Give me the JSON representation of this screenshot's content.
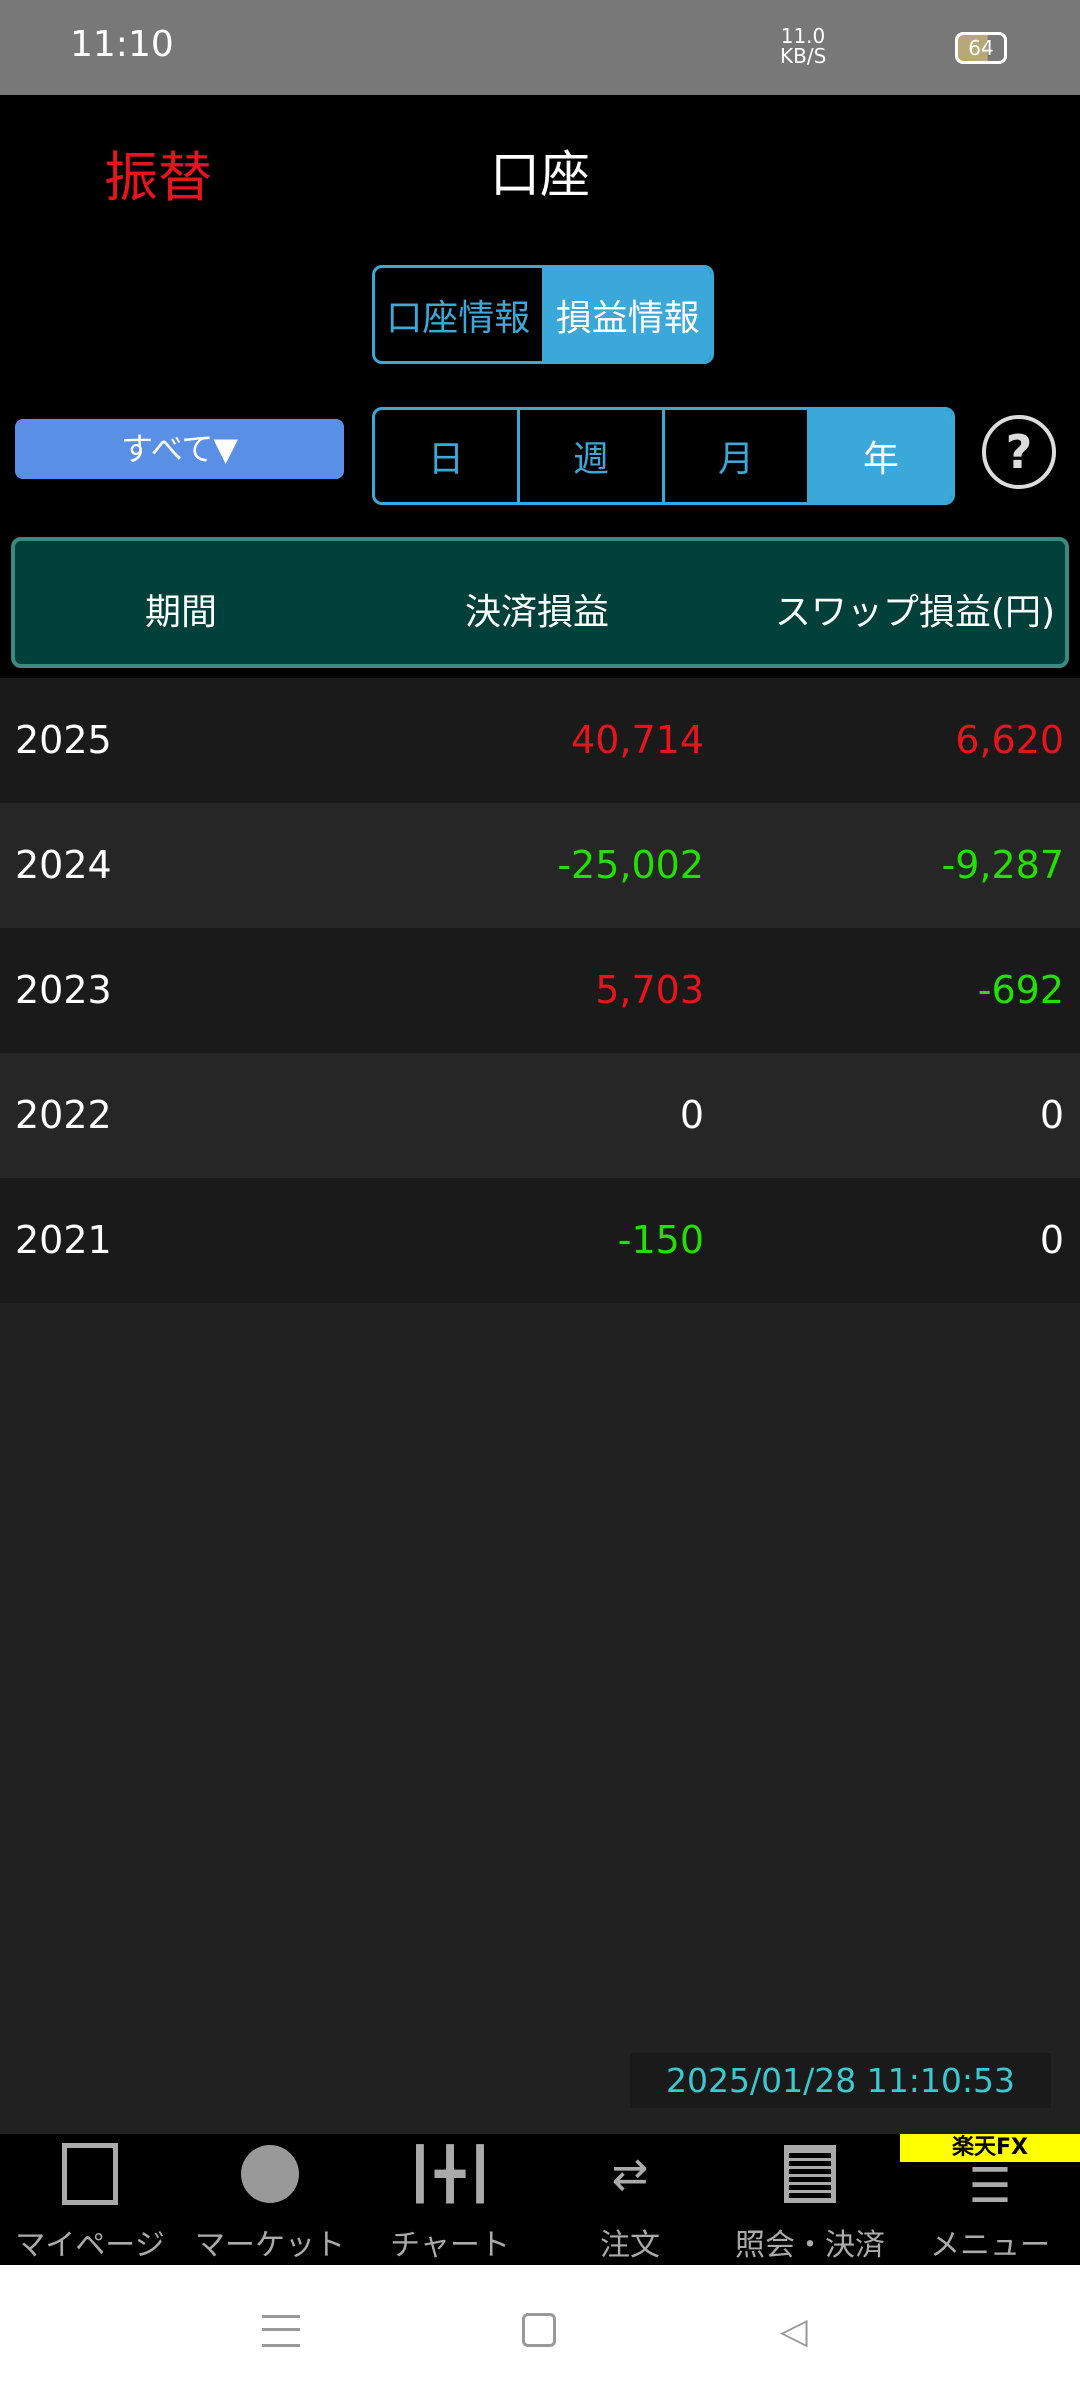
{
  "status": {
    "time": "11:10",
    "speed": "11.0 KB/S",
    "battery": "64"
  },
  "header": {
    "transfer": "振替",
    "title": "口座"
  },
  "view_tabs": [
    {
      "label": "口座情報",
      "active": false
    },
    {
      "label": "損益情報",
      "active": true
    }
  ],
  "filter": {
    "label": "すべて▼"
  },
  "periods": [
    {
      "label": "日",
      "active": false
    },
    {
      "label": "週",
      "active": false
    },
    {
      "label": "月",
      "active": false
    },
    {
      "label": "年",
      "active": true
    }
  ],
  "help": "?",
  "table": {
    "headers": [
      "期間",
      "決済損益",
      "スワップ損益(円)"
    ],
    "rows": [
      {
        "period": "2025",
        "settled": "40,714",
        "swap": "6,620",
        "settled_color": "#e8141c",
        "swap_color": "#e8141c"
      },
      {
        "period": "2024",
        "settled": "-25,002",
        "swap": "-9,287",
        "settled_color": "#22e000",
        "swap_color": "#22e000"
      },
      {
        "period": "2023",
        "settled": "5,703",
        "swap": "-692",
        "settled_color": "#e8141c",
        "swap_color": "#22e000"
      },
      {
        "period": "2022",
        "settled": "0",
        "swap": "0",
        "settled_color": "#ffffff",
        "swap_color": "#ffffff"
      },
      {
        "period": "2021",
        "settled": "-150",
        "swap": "0",
        "settled_color": "#22e000",
        "swap_color": "#ffffff"
      }
    ]
  },
  "timestamp": "2025/01/28 11:10:53",
  "brand": "楽天FX",
  "nav": [
    {
      "label": "マイページ",
      "icon": "bookmark-icon"
    },
    {
      "label": "マーケット",
      "icon": "globe-icon"
    },
    {
      "label": "チャート",
      "icon": "candlestick-icon"
    },
    {
      "label": "注文",
      "icon": "order-icon"
    },
    {
      "label": "照会・決済",
      "icon": "document-icon"
    },
    {
      "label": "メニュー",
      "icon": "menu-icon"
    }
  ]
}
